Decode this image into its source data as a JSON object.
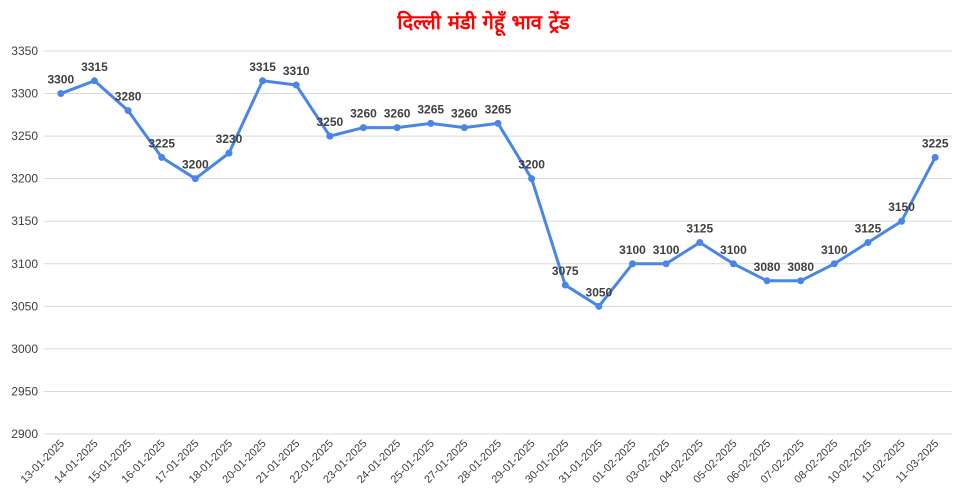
{
  "chart_data": {
    "type": "line",
    "title": "दिल्ली मंडी गेहूँ भाव ट्रेंड",
    "xlabel": "",
    "ylabel": "",
    "categories": [
      "13-01-2025",
      "14-01-2025",
      "15-01-2025",
      "16-01-2025",
      "17-01-2025",
      "18-01-2025",
      "20-01-2025",
      "21-01-2025",
      "22-01-2025",
      "23-01-2025",
      "24-01-2025",
      "25-01-2025",
      "27-01-2025",
      "28-01-2025",
      "29-01-2025",
      "30-01-2025",
      "31-01-2025",
      "01-02-2025",
      "03-02-2025",
      "04-02-2025",
      "05-02-2025",
      "06-02-2025",
      "07-02-2025",
      "08-02-2025",
      "10-02-2025",
      "11-02-2025",
      "11-03-2025"
    ],
    "series": [
      {
        "values": [
          3300,
          3315,
          3280,
          3225,
          3200,
          3230,
          3315,
          3310,
          3250,
          3260,
          3260,
          3265,
          3260,
          3265,
          3200,
          3075,
          3050,
          3100,
          3100,
          3125,
          3100,
          3080,
          3080,
          3100,
          3125,
          3150,
          3225
        ]
      }
    ],
    "ylim": [
      2900,
      3350
    ],
    "yticks": [
      2900,
      2950,
      3000,
      3050,
      3100,
      3150,
      3200,
      3250,
      3300,
      3350
    ],
    "grid": true,
    "legend": "none",
    "colors": {
      "line": "#4a86e8",
      "title": "#ff0000"
    }
  }
}
